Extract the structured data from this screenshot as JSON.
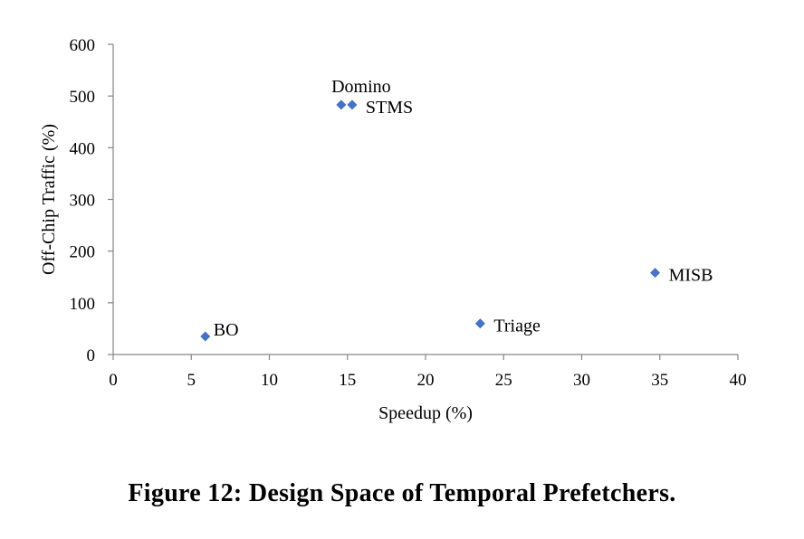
{
  "chart_data": {
    "type": "scatter",
    "title": "",
    "xlabel": "Speedup (%)",
    "ylabel": "Off-Chip Traffic (%)",
    "xlim": [
      0,
      40
    ],
    "ylim": [
      0,
      600
    ],
    "xticks": [
      "0",
      "5",
      "10",
      "15",
      "20",
      "25",
      "30",
      "35",
      "40"
    ],
    "yticks": [
      "0",
      "100",
      "200",
      "300",
      "400",
      "500",
      "600"
    ],
    "grid": false,
    "marker": "diamond",
    "marker_color": "#4472C4",
    "points": [
      {
        "label": "BO",
        "x": 5.9,
        "y": 35
      },
      {
        "label": "Domino",
        "x": 14.6,
        "y": 483
      },
      {
        "label": "STMS",
        "x": 15.3,
        "y": 483
      },
      {
        "label": "Triage",
        "x": 23.5,
        "y": 60
      },
      {
        "label": "MISB",
        "x": 34.7,
        "y": 158
      }
    ]
  },
  "caption": "Figure 12: Design Space of Temporal Prefetchers."
}
